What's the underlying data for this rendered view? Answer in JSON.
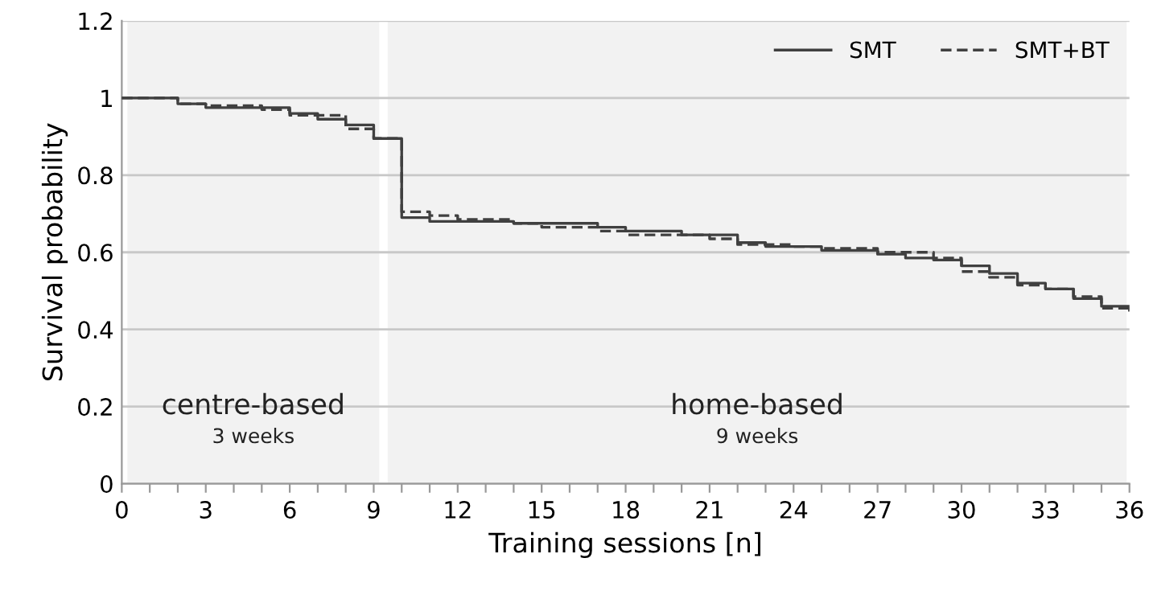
{
  "chart_data": {
    "type": "step",
    "xlabel": "Training sessions [n]",
    "ylabel": "Survival probability",
    "x": [
      0,
      1,
      2,
      3,
      4,
      5,
      6,
      7,
      8,
      9,
      10,
      11,
      12,
      13,
      14,
      15,
      16,
      17,
      18,
      19,
      20,
      21,
      22,
      23,
      24,
      25,
      26,
      27,
      28,
      29,
      30,
      31,
      32,
      33,
      34,
      35,
      36
    ],
    "series": [
      {
        "name": "SMT",
        "color": "#404040",
        "line_style": "solid",
        "values": [
          1,
          1,
          0.985,
          0.975,
          0.975,
          0.975,
          0.96,
          0.945,
          0.93,
          0.895,
          0.69,
          0.68,
          0.68,
          0.68,
          0.675,
          0.675,
          0.675,
          0.665,
          0.655,
          0.655,
          0.645,
          0.645,
          0.625,
          0.615,
          0.615,
          0.605,
          0.605,
          0.595,
          0.585,
          0.58,
          0.565,
          0.545,
          0.52,
          0.505,
          0.48,
          0.46,
          0.45
        ]
      },
      {
        "name": "SMT+BT",
        "color": "#404040",
        "line_style": "dashed",
        "values": [
          1,
          1,
          0.985,
          0.98,
          0.98,
          0.97,
          0.955,
          0.955,
          0.92,
          0.895,
          0.705,
          0.695,
          0.685,
          0.685,
          0.675,
          0.665,
          0.665,
          0.655,
          0.645,
          0.645,
          0.645,
          0.635,
          0.62,
          0.62,
          0.615,
          0.61,
          0.61,
          0.6,
          0.6,
          0.585,
          0.55,
          0.535,
          0.515,
          0.505,
          0.485,
          0.455,
          0.445
        ]
      }
    ],
    "xlim": [
      0,
      36
    ],
    "ylim": [
      0,
      1.2
    ],
    "xticks": [
      0,
      {
        "value": 1,
        "label": null
      },
      {
        "value": 2,
        "label": null
      },
      3,
      {
        "value": 4,
        "label": null
      },
      {
        "value": 5,
        "label": null
      },
      6,
      {
        "value": 7,
        "label": null
      },
      {
        "value": 8,
        "label": null
      },
      9,
      {
        "value": 10,
        "label": null
      },
      {
        "value": 11,
        "label": null
      },
      12,
      {
        "value": 13,
        "label": null
      },
      {
        "value": 14,
        "label": null
      },
      15,
      {
        "value": 16,
        "label": null
      },
      {
        "value": 17,
        "label": null
      },
      18,
      {
        "value": 19,
        "label": null
      },
      {
        "value": 20,
        "label": null
      },
      21,
      {
        "value": 22,
        "label": null
      },
      {
        "value": 23,
        "label": null
      },
      24,
      {
        "value": 25,
        "label": null
      },
      {
        "value": 26,
        "label": null
      },
      27,
      {
        "value": 28,
        "label": null
      },
      {
        "value": 29,
        "label": null
      },
      30,
      {
        "value": 31,
        "label": null
      },
      {
        "value": 32,
        "label": null
      },
      33,
      {
        "value": 34,
        "label": null
      },
      {
        "value": 35,
        "label": null
      },
      36
    ],
    "yticks": [
      0,
      0.2,
      0.4,
      0.6,
      0.8,
      1,
      1.2
    ],
    "bands": [
      {
        "axis": "x",
        "from": 0.2,
        "to": 9.2,
        "label": "centre-based",
        "color": "#f2f2f2"
      },
      {
        "axis": "x",
        "from": 9.5,
        "to": 35.9,
        "label": "home-based",
        "color": "#f2f2f2"
      }
    ],
    "annotations": [
      "3 weeks",
      "9 weeks"
    ],
    "grid": "y",
    "legend": "top right"
  }
}
